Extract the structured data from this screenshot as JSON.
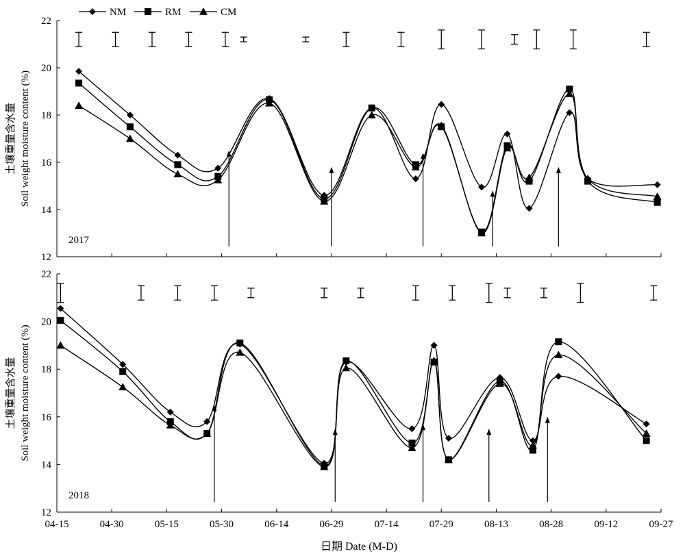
{
  "legend": [
    {
      "name": "NM",
      "marker": "diamond"
    },
    {
      "name": "RM",
      "marker": "square"
    },
    {
      "name": "CM",
      "marker": "triangle"
    }
  ],
  "x_axis_label": "日期 Date (M-D)",
  "x_tick_labels": [
    "04-15",
    "04-30",
    "05-15",
    "05-30",
    "06-14",
    "06-29",
    "07-14",
    "07-29",
    "08-13",
    "08-28",
    "09-12",
    "09-27"
  ],
  "y_axis_label_cn": "土壤重量含水量",
  "y_axis_label_en": "Soil weight moisture content (%)",
  "y_tick_labels": [
    "12",
    "14",
    "16",
    "18",
    "20",
    "22"
  ],
  "colors": {
    "series": "#000000"
  },
  "chart_data": [
    {
      "type": "line",
      "panel_label": "2017",
      "x_unit": "days since 04-15",
      "ylim": [
        12,
        22
      ],
      "xlim": [
        0,
        165
      ],
      "series": [
        {
          "name": "NM",
          "x": [
            6,
            20,
            33,
            44,
            58,
            73,
            86,
            98,
            105,
            116,
            123,
            129,
            140,
            145,
            164
          ],
          "values": [
            19.85,
            18.0,
            16.3,
            15.75,
            18.7,
            14.6,
            18.3,
            15.3,
            18.45,
            14.95,
            17.2,
            14.05,
            18.1,
            15.3,
            15.05
          ]
        },
        {
          "name": "RM",
          "x": [
            6,
            20,
            33,
            44,
            58,
            73,
            86,
            98,
            105,
            116,
            123,
            129,
            140,
            145,
            164
          ],
          "values": [
            19.35,
            17.5,
            15.9,
            15.4,
            18.65,
            14.45,
            18.3,
            15.9,
            17.5,
            13.05,
            16.7,
            15.2,
            19.1,
            15.2,
            14.3
          ]
        },
        {
          "name": "CM",
          "x": [
            6,
            20,
            33,
            44,
            58,
            73,
            86,
            98,
            105,
            116,
            123,
            129,
            140,
            145,
            164
          ],
          "values": [
            18.4,
            17.0,
            15.5,
            15.25,
            18.5,
            14.35,
            18.0,
            15.8,
            17.55,
            13.0,
            16.6,
            15.35,
            18.9,
            15.3,
            14.55
          ]
        }
      ],
      "rainfall_markers": [
        {
          "x": 47,
          "top": 16.5
        },
        {
          "x": 75,
          "top": 15.8
        },
        {
          "x": 100,
          "top": 16.4
        },
        {
          "x": 119,
          "top": 14.8
        },
        {
          "x": 137,
          "top": 15.8
        }
      ],
      "error_bars": [
        {
          "x": 6,
          "low": 20.9,
          "high": 21.5
        },
        {
          "x": 16,
          "low": 20.9,
          "high": 21.5
        },
        {
          "x": 26,
          "low": 20.9,
          "high": 21.5
        },
        {
          "x": 36,
          "low": 20.9,
          "high": 21.5
        },
        {
          "x": 46,
          "low": 20.9,
          "high": 21.5
        },
        {
          "x": 51,
          "low": 21.1,
          "high": 21.3
        },
        {
          "x": 68,
          "low": 21.1,
          "high": 21.3
        },
        {
          "x": 79,
          "low": 20.9,
          "high": 21.5
        },
        {
          "x": 94,
          "low": 20.9,
          "high": 21.5
        },
        {
          "x": 105,
          "low": 20.8,
          "high": 21.6
        },
        {
          "x": 116,
          "low": 20.8,
          "high": 21.6
        },
        {
          "x": 125,
          "low": 21.0,
          "high": 21.4
        },
        {
          "x": 131,
          "low": 20.8,
          "high": 21.6
        },
        {
          "x": 141,
          "low": 20.8,
          "high": 21.6
        },
        {
          "x": 161,
          "low": 20.9,
          "high": 21.5
        }
      ]
    },
    {
      "type": "line",
      "panel_label": "2018",
      "x_unit": "days since 04-15",
      "ylim": [
        12,
        22
      ],
      "xlim": [
        0,
        165
      ],
      "series": [
        {
          "name": "NM",
          "x": [
            1,
            18,
            31,
            41,
            50,
            73,
            79,
            97,
            103,
            107,
            121,
            130,
            137,
            161
          ],
          "values": [
            20.55,
            18.2,
            16.2,
            15.8,
            19.05,
            14.05,
            18.3,
            15.5,
            19.0,
            15.1,
            17.65,
            15.0,
            17.7,
            15.7
          ]
        },
        {
          "name": "RM",
          "x": [
            1,
            18,
            31,
            41,
            50,
            73,
            79,
            97,
            103,
            107,
            121,
            130,
            137,
            161
          ],
          "values": [
            20.05,
            17.9,
            15.8,
            15.3,
            19.1,
            13.95,
            18.35,
            14.9,
            18.3,
            14.2,
            17.5,
            14.6,
            19.15,
            15.0
          ]
        },
        {
          "name": "CM",
          "x": [
            1,
            18,
            31,
            41,
            50,
            73,
            79,
            97,
            103,
            107,
            121,
            130,
            137,
            161
          ],
          "values": [
            19.0,
            17.25,
            15.65,
            15.3,
            18.7,
            13.9,
            18.05,
            14.7,
            18.35,
            14.2,
            17.4,
            14.8,
            18.6,
            15.3
          ]
        }
      ],
      "rainfall_markers": [
        {
          "x": 43,
          "top": 16.5
        },
        {
          "x": 76,
          "top": 15.5
        },
        {
          "x": 100,
          "top": 15.7
        },
        {
          "x": 118,
          "top": 15.5
        },
        {
          "x": 134,
          "top": 16.0
        }
      ],
      "error_bars": [
        {
          "x": 1,
          "low": 20.8,
          "high": 21.6
        },
        {
          "x": 23,
          "low": 20.9,
          "high": 21.5
        },
        {
          "x": 33,
          "low": 20.9,
          "high": 21.5
        },
        {
          "x": 43,
          "low": 20.9,
          "high": 21.5
        },
        {
          "x": 53,
          "low": 21.0,
          "high": 21.4
        },
        {
          "x": 73,
          "low": 21.0,
          "high": 21.4
        },
        {
          "x": 83,
          "low": 21.0,
          "high": 21.4
        },
        {
          "x": 98,
          "low": 20.9,
          "high": 21.5
        },
        {
          "x": 108,
          "low": 20.9,
          "high": 21.5
        },
        {
          "x": 118,
          "low": 20.8,
          "high": 21.6
        },
        {
          "x": 123,
          "low": 21.0,
          "high": 21.4
        },
        {
          "x": 133,
          "low": 21.0,
          "high": 21.4
        },
        {
          "x": 143,
          "low": 20.8,
          "high": 21.6
        },
        {
          "x": 163,
          "low": 20.9,
          "high": 21.5
        }
      ]
    }
  ]
}
